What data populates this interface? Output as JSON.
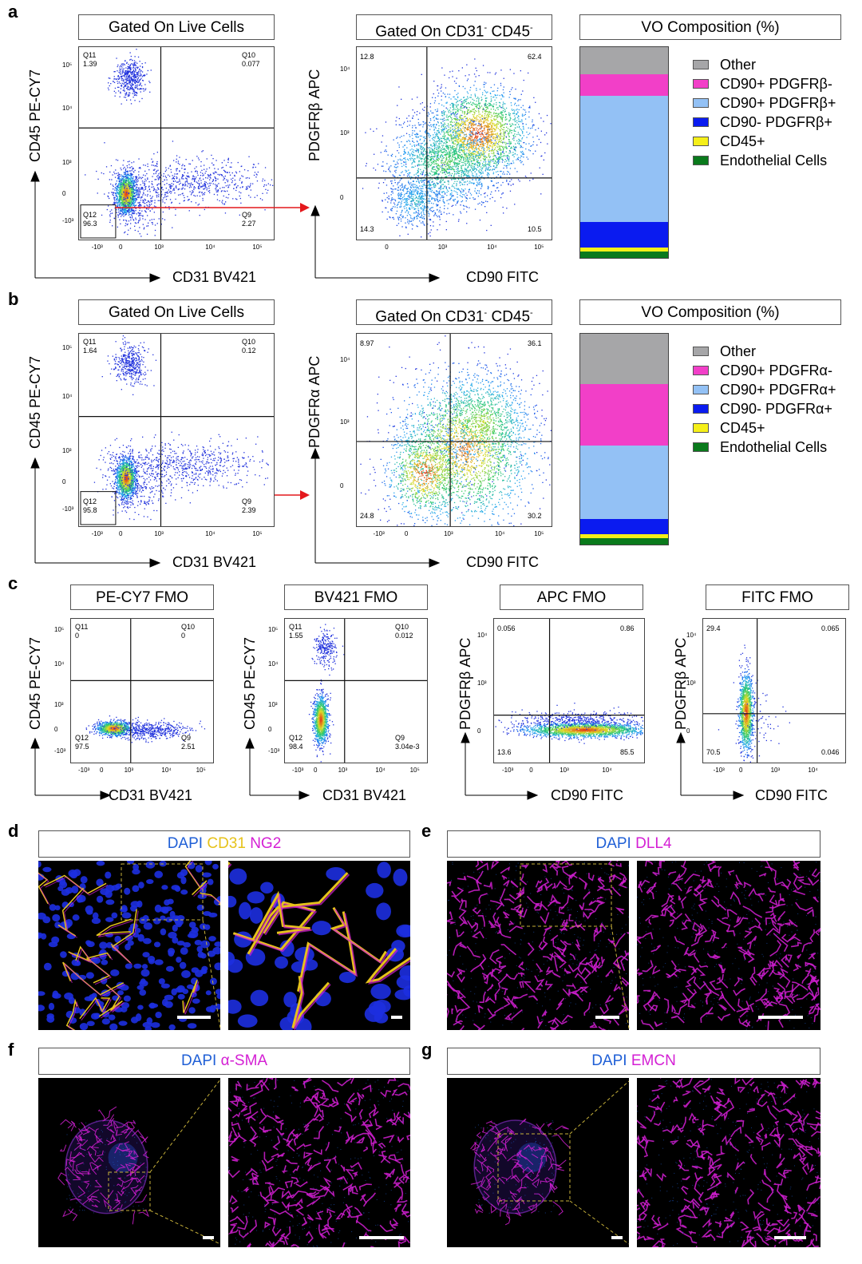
{
  "panels": {
    "a": "a",
    "b": "b",
    "c": "c",
    "d": "d",
    "e": "e",
    "f": "f",
    "g": "g"
  },
  "titles": {
    "live": "Gated On Live Cells",
    "gated_pre": "Gated On CD31",
    "gated_mid": " CD45",
    "sup_minus": "-",
    "vo": "VO Composition (%)",
    "pecy7_fmo": "PE-CY7 FMO",
    "bv421_fmo": "BV421 FMO",
    "apc_fmo": "APC FMO",
    "fitc_fmo": "FITC FMO"
  },
  "axes": {
    "cd45": "CD45 PE-CY7",
    "cd31": "CD31 BV421",
    "pdgfrb": "PDGFRβ APC",
    "pdgfra": "PDGFRα APC",
    "cd90": "CD90 FITC"
  },
  "ticks": {
    "e5": "10⁵",
    "e4": "10⁴",
    "e3": "10³",
    "zero": "0",
    "neg3": "-10³"
  },
  "quadrants": {
    "a1": {
      "q11": "Q11",
      "v11": "1.39",
      "q10": "Q10",
      "v10": "0.077",
      "q12": "Q12",
      "v12": "96.3",
      "q9": "Q9",
      "v9": "2.27"
    },
    "a2": {
      "ul": "12.8",
      "ur": "62.4",
      "ll": "14.3",
      "lr": "10.5"
    },
    "b1": {
      "q11": "Q11",
      "v11": "1.64",
      "q10": "Q10",
      "v10": "0.12",
      "q12": "Q12",
      "v12": "95.8",
      "q9": "Q9",
      "v9": "2.39"
    },
    "b2": {
      "ul": "8.97",
      "ur": "36.1",
      "ll": "24.8",
      "lr": "30.2"
    },
    "c1": {
      "q11": "Q11",
      "v11": "0",
      "q10": "Q10",
      "v10": "0",
      "q12": "Q12",
      "v12": "97.5",
      "q9": "Q9",
      "v9": "2.51"
    },
    "c2": {
      "q11": "Q11",
      "v11": "1.55",
      "q10": "Q10",
      "v10": "0.012",
      "q12": "Q12",
      "v12": "98.4",
      "q9": "Q9",
      "v9": "3.04e-3"
    },
    "c3": {
      "ul": "0.056",
      "ur": "0.86",
      "ll": "13.6",
      "lr": "85.5"
    },
    "c4": {
      "ul": "29.4",
      "ur": "0.065",
      "ll": "70.5",
      "lr": "0.046"
    }
  },
  "legend_a": {
    "items": [
      "Other",
      "CD90+ PDGFRβ-",
      "CD90+ PDGFRβ+",
      "CD90- PDGFRβ+",
      "CD45+",
      "Endothelial Cells"
    ],
    "colors": [
      "#a6a6a8",
      "#f23fc8",
      "#93c1f5",
      "#0a1bf0",
      "#f5ef19",
      "#0a7a1c"
    ],
    "fractions": [
      0.13,
      0.1,
      0.6,
      0.12,
      0.02,
      0.03
    ]
  },
  "legend_b": {
    "items": [
      "Other",
      "CD90+ PDGFRα-",
      "CD90+ PDGFRα+",
      "CD90- PDGFRα+",
      "CD45+",
      "Endothelial Cells"
    ],
    "colors": [
      "#a6a6a8",
      "#f23fc8",
      "#93c1f5",
      "#0a1bf0",
      "#f5ef19",
      "#0a7a1c"
    ],
    "fractions": [
      0.24,
      0.29,
      0.35,
      0.07,
      0.02,
      0.03
    ]
  },
  "stains": {
    "dapi": "DAPI",
    "cd31": "CD31",
    "ng2": "NG2",
    "dll4": "DLL4",
    "asma": "α-SMA",
    "emcn": "EMCN",
    "dapi_color": "#1f5fd6",
    "cd31_color": "#e6c21a",
    "magenta": "#d41fd4"
  }
}
